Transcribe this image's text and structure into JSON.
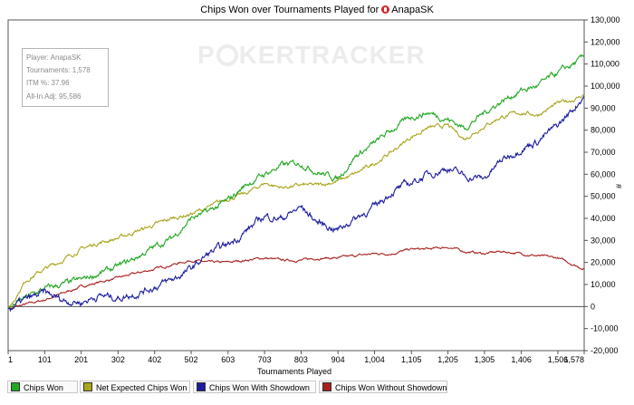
{
  "title": {
    "text": "Chips Won over Tournaments Played for",
    "player": "AnapaSK"
  },
  "watermark": {
    "brand_left": "P",
    "brand_right": "KER",
    "brand_tracker": "TRACKER"
  },
  "info_box": {
    "player": "Player: AnapaSK",
    "tournaments": "Tournaments: 1,578",
    "itm": "ITM %: 37.96",
    "allin": "All-In Adj: 95,586"
  },
  "axis": {
    "xlabel": "Tournaments Played",
    "ylabel": "#"
  },
  "legend": [
    {
      "label": "Chips Won",
      "color": "#22a822"
    },
    {
      "label": "Net Expected Chips Won",
      "color": "#a9a51c"
    },
    {
      "label": "Chips Won With Showdown",
      "color": "#1c1ca0"
    },
    {
      "label": "Chips Won Without Showdown",
      "color": "#a8201e"
    }
  ],
  "chart_data": {
    "type": "line",
    "title": "Chips Won over Tournaments Played for AnapaSK",
    "xlabel": "Tournaments Played",
    "ylabel": "#",
    "xlim": [
      1,
      1578
    ],
    "ylim": [
      -20000,
      130000
    ],
    "x_ticks": [
      1,
      101,
      201,
      302,
      402,
      502,
      603,
      703,
      803,
      904,
      1004,
      1105,
      1205,
      1305,
      1406,
      1506,
      1578
    ],
    "x_tick_labels": [
      "1",
      "101",
      "201",
      "302",
      "402",
      "502",
      "603",
      "703",
      "803",
      "904",
      "1,004",
      "1,105",
      "1,205",
      "1,305",
      "1,406",
      "1,506",
      "1,578"
    ],
    "y_ticks": [
      -20000,
      -10000,
      0,
      10000,
      20000,
      30000,
      40000,
      50000,
      60000,
      70000,
      80000,
      90000,
      100000,
      110000,
      120000,
      130000
    ],
    "y_tick_labels": [
      "-20,000",
      "-10,000",
      "0",
      "10,000",
      "20,000",
      "30,000",
      "40,000",
      "50,000",
      "60,000",
      "70,000",
      "80,000",
      "90,000",
      "100,000",
      "110,000",
      "120,000",
      "130,000"
    ],
    "grid": false,
    "legend_position": "bottom",
    "x": [
      1,
      50,
      101,
      150,
      201,
      250,
      302,
      350,
      402,
      450,
      502,
      550,
      603,
      650,
      703,
      750,
      803,
      850,
      904,
      950,
      1004,
      1050,
      1105,
      1150,
      1205,
      1250,
      1305,
      1350,
      1406,
      1450,
      1506,
      1550,
      1578
    ],
    "series": [
      {
        "name": "Chips Won",
        "color": "#22a822",
        "values": [
          -1000,
          4000,
          8000,
          10000,
          12000,
          15000,
          18000,
          22000,
          27000,
          31000,
          40000,
          43000,
          48000,
          55000,
          60000,
          64000,
          65000,
          61000,
          58000,
          68000,
          74000,
          80000,
          86000,
          88000,
          85000,
          81000,
          88000,
          93000,
          98000,
          100000,
          106000,
          110000,
          113000
        ]
      },
      {
        "name": "Net Expected Chips Won",
        "color": "#a9a51c",
        "values": [
          -1000,
          12000,
          17000,
          21000,
          26000,
          29000,
          31000,
          34000,
          37000,
          40000,
          42000,
          45000,
          49000,
          51000,
          56000,
          54000,
          55000,
          55000,
          57000,
          60000,
          65000,
          70000,
          77000,
          81000,
          82000,
          76000,
          82000,
          86000,
          88000,
          87000,
          92000,
          94000,
          96000
        ]
      },
      {
        "name": "Chips Won With Showdown",
        "color": "#1c1ca0",
        "values": [
          -1000,
          3000,
          6000,
          3000,
          2000,
          5000,
          4000,
          6000,
          9000,
          12000,
          17000,
          24000,
          28000,
          34000,
          41000,
          40000,
          45000,
          38000,
          35000,
          40000,
          45000,
          52000,
          56000,
          60000,
          63000,
          59000,
          58000,
          66000,
          72000,
          75000,
          82000,
          90000,
          96000
        ]
      },
      {
        "name": "Chips Won Without Showdown",
        "color": "#a8201e",
        "values": [
          -1000,
          1000,
          3000,
          6000,
          9000,
          11000,
          13000,
          15000,
          17000,
          19000,
          21000,
          20000,
          20000,
          21000,
          22000,
          21000,
          21000,
          22000,
          22000,
          23000,
          24000,
          24000,
          26000,
          26000,
          27000,
          25000,
          24000,
          25000,
          24000,
          23000,
          22000,
          19000,
          17000
        ]
      }
    ]
  }
}
